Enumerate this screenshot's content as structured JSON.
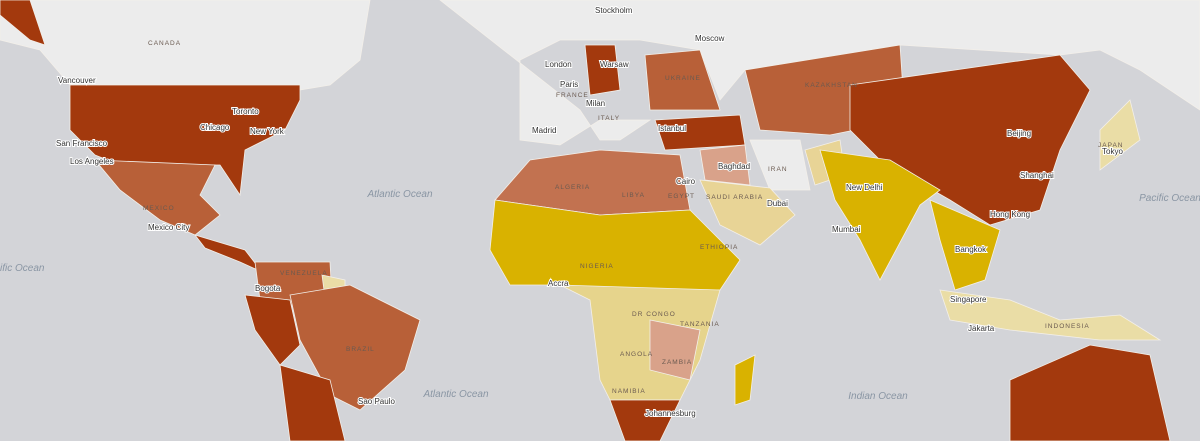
{
  "cities": [
    "Stockholm",
    "Moscow",
    "Vancouver",
    "Toronto",
    "Chicago",
    "New York",
    "San Francisco",
    "Los Angeles",
    "Mexico City",
    "London",
    "Warsaw",
    "Paris",
    "Milan",
    "Madrid",
    "Istanbul",
    "Baghdad",
    "Cairo",
    "Dubai",
    "New Delhi",
    "Mumbai",
    "Beijing",
    "Shanghai",
    "Tokyo",
    "Hong Kong",
    "Bangkok",
    "Singapore",
    "Jakarta",
    "Accra",
    "Johannesburg",
    "Bogota",
    "Sao Paulo"
  ],
  "countries": [
    "CANADA",
    "MEXICO",
    "FRANCE",
    "ITALY",
    "UKRAINE",
    "KAZAKHSTAN",
    "IRAN",
    "SAUDI ARABIA",
    "EGYPT",
    "LIBYA",
    "ALGERIA",
    "NIGERIA",
    "ETHIOPIA",
    "DR CONGO",
    "TANZANIA",
    "ANGOLA",
    "ZAMBIA",
    "NAMIBIA",
    "VENEZUELA",
    "BRAZIL",
    "JAPAN",
    "INDONESIA"
  ],
  "oceans": [
    "Atlantic Ocean",
    "Pacific Ocean",
    "Indian Ocean",
    "Atlantic Ocean",
    "ific Ocean"
  ]
}
